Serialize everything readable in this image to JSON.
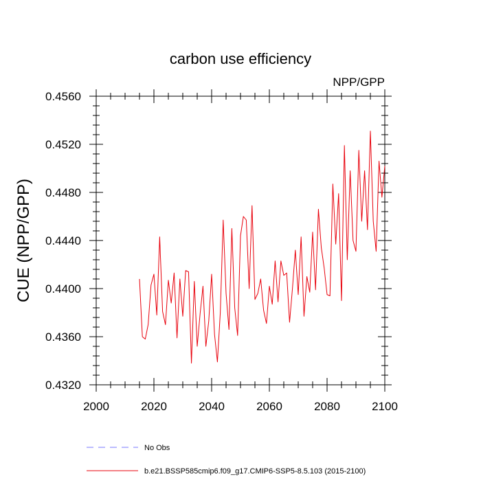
{
  "chart_data": {
    "type": "line",
    "title": "carbon use efficiency",
    "subtitle": "NPP/GPP",
    "xlabel": "",
    "ylabel": "CUE  (NPP/GPP)",
    "xlim": [
      2000,
      2100
    ],
    "ylim": [
      0.432,
      0.456
    ],
    "x_ticks": [
      2000,
      2020,
      2040,
      2060,
      2080,
      2100
    ],
    "x_tick_labels": [
      "2000",
      "2020",
      "2040",
      "2060",
      "2080",
      "2100"
    ],
    "y_ticks": [
      0.432,
      0.436,
      0.44,
      0.444,
      0.448,
      0.452,
      0.456
    ],
    "y_tick_labels": [
      "0.4320",
      "0.4360",
      "0.4400",
      "0.4440",
      "0.4480",
      "0.4520",
      "0.4560"
    ],
    "legend": {
      "placement": "bottom",
      "items": [
        {
          "label": "No Obs",
          "color": "#7777ff",
          "style": "dashed"
        },
        {
          "label": "b.e21.BSSP585cmip6.f09_g17.CMIP6-SSP5-8.5.103 (2015-2100)",
          "color": "#e8000b",
          "style": "solid"
        }
      ]
    },
    "series": [
      {
        "name": "b.e21.BSSP585cmip6.f09_g17.CMIP6-SSP5-8.5.103 (2015-2100)",
        "color": "#e8000b",
        "x": [
          2015,
          2016,
          2017,
          2018,
          2019,
          2020,
          2021,
          2022,
          2023,
          2024,
          2025,
          2026,
          2027,
          2028,
          2029,
          2030,
          2031,
          2032,
          2033,
          2034,
          2035,
          2036,
          2037,
          2038,
          2039,
          2040,
          2041,
          2042,
          2043,
          2044,
          2045,
          2046,
          2047,
          2048,
          2049,
          2050,
          2051,
          2052,
          2053,
          2054,
          2055,
          2056,
          2057,
          2058,
          2059,
          2060,
          2061,
          2062,
          2063,
          2064,
          2065,
          2066,
          2067,
          2068,
          2069,
          2070,
          2071,
          2072,
          2073,
          2074,
          2075,
          2076,
          2077,
          2078,
          2079,
          2080,
          2081,
          2082,
          2083,
          2084,
          2085,
          2086,
          2087,
          2088,
          2089,
          2090,
          2091,
          2092,
          2093,
          2094,
          2095,
          2096,
          2097,
          2098,
          2099,
          2100
        ],
        "y": [
          0.4408,
          0.436,
          0.4358,
          0.437,
          0.4403,
          0.4412,
          0.4378,
          0.4443,
          0.4381,
          0.437,
          0.4407,
          0.4388,
          0.4413,
          0.4359,
          0.4408,
          0.4377,
          0.4415,
          0.4414,
          0.4338,
          0.4406,
          0.4352,
          0.4379,
          0.4402,
          0.4352,
          0.4373,
          0.4412,
          0.4362,
          0.4339,
          0.438,
          0.4457,
          0.4396,
          0.4366,
          0.445,
          0.4384,
          0.4361,
          0.4444,
          0.446,
          0.4457,
          0.44,
          0.4469,
          0.4391,
          0.4396,
          0.4408,
          0.4382,
          0.4371,
          0.4402,
          0.4387,
          0.4423,
          0.4389,
          0.4423,
          0.4411,
          0.4413,
          0.4372,
          0.44,
          0.4432,
          0.4395,
          0.4443,
          0.4377,
          0.441,
          0.4397,
          0.4447,
          0.4399,
          0.4466,
          0.4434,
          0.4417,
          0.4395,
          0.4394,
          0.4487,
          0.4437,
          0.4479,
          0.439,
          0.4519,
          0.4424,
          0.4498,
          0.444,
          0.4431,
          0.4515,
          0.4456,
          0.4498,
          0.4449,
          0.4531,
          0.4456,
          0.4431,
          0.4506,
          0.4476,
          0.4502
        ]
      }
    ]
  }
}
